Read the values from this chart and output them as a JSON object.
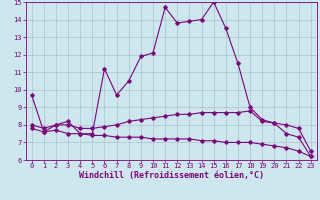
{
  "xlabel": "Windchill (Refroidissement éolien,°C)",
  "xlim": [
    -0.5,
    23.5
  ],
  "ylim": [
    6,
    15
  ],
  "xticks": [
    0,
    1,
    2,
    3,
    4,
    5,
    6,
    7,
    8,
    9,
    10,
    11,
    12,
    13,
    14,
    15,
    16,
    17,
    18,
    19,
    20,
    21,
    22,
    23
  ],
  "yticks": [
    6,
    7,
    8,
    9,
    10,
    11,
    12,
    13,
    14,
    15
  ],
  "bg_color": "#cce8ee",
  "line_color": "#800080",
  "grid_color": "#aac4cc",
  "line1_x": [
    0,
    1,
    2,
    3,
    4,
    5,
    6,
    7,
    8,
    9,
    10,
    11,
    12,
    13,
    14,
    15,
    16,
    17,
    18,
    19,
    20,
    21,
    22,
    23
  ],
  "line1_y": [
    9.7,
    7.6,
    8.0,
    8.2,
    7.5,
    7.5,
    11.2,
    9.7,
    10.5,
    11.9,
    12.1,
    14.7,
    13.8,
    13.9,
    14.0,
    15.0,
    13.5,
    11.5,
    9.0,
    8.3,
    8.1,
    7.5,
    7.3,
    6.2
  ],
  "line2_x": [
    0,
    1,
    2,
    3,
    4,
    5,
    6,
    7,
    8,
    9,
    10,
    11,
    12,
    13,
    14,
    15,
    16,
    17,
    18,
    19,
    20,
    21,
    22,
    23
  ],
  "line2_y": [
    8.0,
    7.8,
    8.0,
    8.0,
    7.8,
    7.8,
    7.9,
    8.0,
    8.2,
    8.3,
    8.4,
    8.5,
    8.6,
    8.6,
    8.7,
    8.7,
    8.7,
    8.7,
    8.8,
    8.2,
    8.1,
    8.0,
    7.8,
    6.5
  ],
  "line3_x": [
    0,
    1,
    2,
    3,
    4,
    5,
    6,
    7,
    8,
    9,
    10,
    11,
    12,
    13,
    14,
    15,
    16,
    17,
    18,
    19,
    20,
    21,
    22,
    23
  ],
  "line3_y": [
    7.8,
    7.6,
    7.7,
    7.5,
    7.5,
    7.4,
    7.4,
    7.3,
    7.3,
    7.3,
    7.2,
    7.2,
    7.2,
    7.2,
    7.1,
    7.1,
    7.0,
    7.0,
    7.0,
    6.9,
    6.8,
    6.7,
    6.5,
    6.2
  ],
  "marker": "D",
  "markersize": 1.8,
  "linewidth": 0.8,
  "tick_fontsize": 5.0,
  "label_fontsize": 6.0
}
